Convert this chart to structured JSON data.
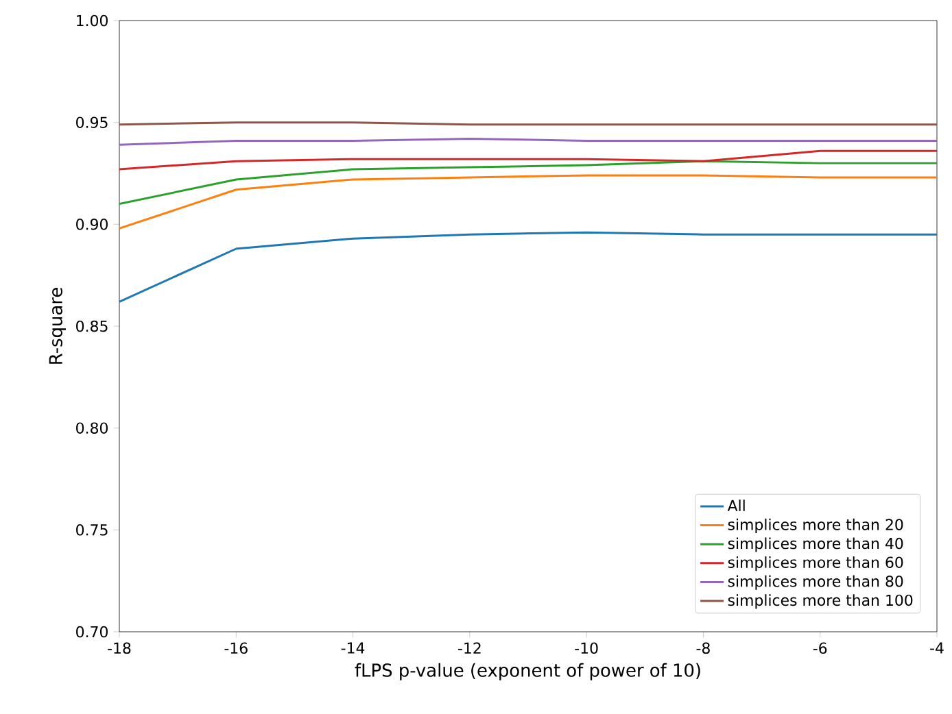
{
  "chart_data": {
    "type": "line",
    "xlabel": "fLPS p-value (exponent of power of 10)",
    "ylabel": "R-square",
    "x": [
      -18,
      -16,
      -14,
      -12,
      -10,
      -8,
      -6,
      -4
    ],
    "series": [
      {
        "name": "All",
        "color": "#1f77b4",
        "values": [
          0.862,
          0.888,
          0.893,
          0.895,
          0.896,
          0.895,
          0.895,
          0.895
        ]
      },
      {
        "name": "simplices more than 20",
        "color": "#ff7f0e",
        "values": [
          0.898,
          0.917,
          0.922,
          0.923,
          0.924,
          0.924,
          0.923,
          0.923
        ]
      },
      {
        "name": "simplices more than 40",
        "color": "#2ca02c",
        "values": [
          0.91,
          0.922,
          0.927,
          0.928,
          0.929,
          0.931,
          0.93,
          0.93
        ]
      },
      {
        "name": "simplices more than 60",
        "color": "#d62728",
        "values": [
          0.927,
          0.931,
          0.932,
          0.932,
          0.932,
          0.931,
          0.936,
          0.936
        ]
      },
      {
        "name": "simplices more than 80",
        "color": "#9467bd",
        "values": [
          0.939,
          0.941,
          0.941,
          0.942,
          0.941,
          0.941,
          0.941,
          0.941
        ]
      },
      {
        "name": "simplices more than 100",
        "color": "#8c564b",
        "values": [
          0.949,
          0.95,
          0.95,
          0.949,
          0.949,
          0.949,
          0.949,
          0.949
        ]
      }
    ],
    "xlim": [
      -18,
      -4
    ],
    "ylim": [
      0.7,
      1.0
    ],
    "xticks": [
      -18,
      -16,
      -14,
      -12,
      -10,
      -8,
      -6,
      -4
    ],
    "yticks": [
      {
        "value": 0.7,
        "label": "0.70"
      },
      {
        "value": 0.75,
        "label": "0.75"
      },
      {
        "value": 0.8,
        "label": "0.80"
      },
      {
        "value": 0.85,
        "label": "0.85"
      },
      {
        "value": 0.9,
        "label": "0.90"
      },
      {
        "value": 0.95,
        "label": "0.95"
      },
      {
        "value": 1.0,
        "label": "1.00"
      }
    ],
    "legend": "bottom right",
    "grid": false,
    "marker": "none",
    "line_style": "solid"
  }
}
